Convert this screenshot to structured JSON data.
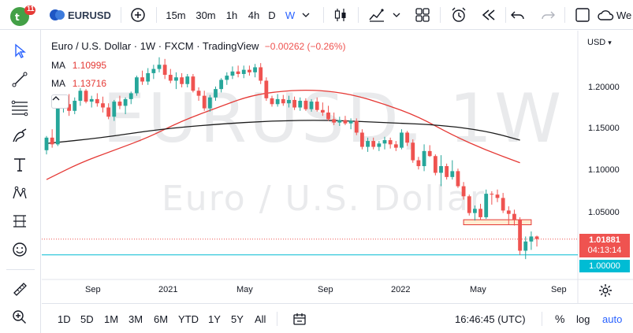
{
  "toolbar": {
    "notification_count": "11",
    "symbol": "EURUSD",
    "intervals": [
      "15m",
      "30m",
      "1h",
      "4h",
      "D",
      "W"
    ],
    "active_interval": "W",
    "cut_label": "We"
  },
  "legend": {
    "title": "Euro / U.S. Dollar · 1W · FXCM · TradingView",
    "change": "−0.00262 (−0.26%)",
    "ma1_label": "MA",
    "ma1_value": "1.10995",
    "ma2_label": "MA",
    "ma2_value": "1.13716"
  },
  "watermark": {
    "symbol": "EURUSD, 1W",
    "name": "Euro / U.S. Dollar"
  },
  "price_axis": {
    "currency": "USD",
    "currency_caret": "▾",
    "ticks": [
      "1.20000",
      "1.15000",
      "1.10000",
      "1.05000"
    ],
    "last_price": "1.01881",
    "countdown": "04:13:14",
    "hline_price": "1.00000"
  },
  "time_axis": {
    "ticks": [
      "Sep",
      "2021",
      "May",
      "Sep",
      "2022",
      "May",
      "Sep"
    ]
  },
  "bottom": {
    "ranges": [
      "1D",
      "5D",
      "1M",
      "3M",
      "6M",
      "YTD",
      "1Y",
      "5Y",
      "All"
    ],
    "clock": "16:46:45 (UTC)",
    "percent": "%",
    "log": "log",
    "auto": "auto"
  },
  "colors": {
    "up": "#26a69a",
    "down": "#ef5350",
    "ma_fast": "#e53935",
    "ma_slow": "#1b1b1b",
    "accent": "#2962ff",
    "hline": "#00bcd4"
  },
  "chart_data": {
    "type": "candlestick",
    "interval": "1W",
    "unit": "USD",
    "ylim": [
      0.99,
      1.24
    ],
    "candles": [
      [
        1.125,
        1.142,
        1.12,
        1.14
      ],
      [
        1.14,
        1.15,
        1.128,
        1.132
      ],
      [
        1.132,
        1.178,
        1.13,
        1.175
      ],
      [
        1.175,
        1.189,
        1.17,
        1.18
      ],
      [
        1.18,
        1.192,
        1.166,
        1.172
      ],
      [
        1.172,
        1.188,
        1.168,
        1.184
      ],
      [
        1.184,
        1.199,
        1.178,
        1.196
      ],
      [
        1.196,
        1.198,
        1.181,
        1.183
      ],
      [
        1.183,
        1.19,
        1.176,
        1.186
      ],
      [
        1.186,
        1.193,
        1.177,
        1.181
      ],
      [
        1.181,
        1.189,
        1.17,
        1.176
      ],
      [
        1.176,
        1.181,
        1.162,
        1.165
      ],
      [
        1.165,
        1.185,
        1.16,
        1.183
      ],
      [
        1.183,
        1.19,
        1.174,
        1.178
      ],
      [
        1.178,
        1.188,
        1.168,
        1.186
      ],
      [
        1.186,
        1.195,
        1.18,
        1.193
      ],
      [
        1.193,
        1.214,
        1.19,
        1.212
      ],
      [
        1.212,
        1.22,
        1.203,
        1.207
      ],
      [
        1.207,
        1.223,
        1.203,
        1.217
      ],
      [
        1.217,
        1.227,
        1.21,
        1.222
      ],
      [
        1.222,
        1.236,
        1.218,
        1.227
      ],
      [
        1.227,
        1.234,
        1.21,
        1.215
      ],
      [
        1.215,
        1.222,
        1.205,
        1.208
      ],
      [
        1.208,
        1.218,
        1.198,
        1.212
      ],
      [
        1.212,
        1.217,
        1.2,
        1.204
      ],
      [
        1.204,
        1.216,
        1.2,
        1.213
      ],
      [
        1.213,
        1.216,
        1.194,
        1.196
      ],
      [
        1.196,
        1.2,
        1.184,
        1.19
      ],
      [
        1.19,
        1.196,
        1.172,
        1.175
      ],
      [
        1.175,
        1.191,
        1.171,
        1.188
      ],
      [
        1.188,
        1.201,
        1.184,
        1.198
      ],
      [
        1.198,
        1.211,
        1.194,
        1.209
      ],
      [
        1.209,
        1.218,
        1.203,
        1.214
      ],
      [
        1.214,
        1.225,
        1.21,
        1.219
      ],
      [
        1.219,
        1.226,
        1.212,
        1.216
      ],
      [
        1.216,
        1.226,
        1.211,
        1.221
      ],
      [
        1.221,
        1.226,
        1.214,
        1.218
      ],
      [
        1.218,
        1.228,
        1.212,
        1.224
      ],
      [
        1.224,
        1.229,
        1.204,
        1.208
      ],
      [
        1.208,
        1.212,
        1.184,
        1.187
      ],
      [
        1.187,
        1.19,
        1.177,
        1.18
      ],
      [
        1.18,
        1.192,
        1.177,
        1.186
      ],
      [
        1.186,
        1.191,
        1.178,
        1.181
      ],
      [
        1.181,
        1.19,
        1.176,
        1.185
      ],
      [
        1.185,
        1.189,
        1.173,
        1.176
      ],
      [
        1.176,
        1.188,
        1.172,
        1.184
      ],
      [
        1.184,
        1.187,
        1.172,
        1.174
      ],
      [
        1.174,
        1.186,
        1.171,
        1.183
      ],
      [
        1.183,
        1.188,
        1.171,
        1.173
      ],
      [
        1.173,
        1.182,
        1.166,
        1.17
      ],
      [
        1.17,
        1.178,
        1.16,
        1.162
      ],
      [
        1.162,
        1.17,
        1.155,
        1.158
      ],
      [
        1.158,
        1.165,
        1.154,
        1.161
      ],
      [
        1.161,
        1.166,
        1.155,
        1.157
      ],
      [
        1.157,
        1.163,
        1.15,
        1.16
      ],
      [
        1.16,
        1.163,
        1.143,
        1.146
      ],
      [
        1.146,
        1.15,
        1.126,
        1.129
      ],
      [
        1.129,
        1.14,
        1.123,
        1.136
      ],
      [
        1.136,
        1.14,
        1.126,
        1.129
      ],
      [
        1.129,
        1.136,
        1.124,
        1.133
      ],
      [
        1.133,
        1.141,
        1.126,
        1.137
      ],
      [
        1.137,
        1.14,
        1.127,
        1.132
      ],
      [
        1.132,
        1.136,
        1.124,
        1.128
      ],
      [
        1.128,
        1.15,
        1.126,
        1.146
      ],
      [
        1.146,
        1.148,
        1.13,
        1.134
      ],
      [
        1.134,
        1.138,
        1.11,
        1.113
      ],
      [
        1.113,
        1.117,
        1.102,
        1.106
      ],
      [
        1.106,
        1.132,
        1.1,
        1.124
      ],
      [
        1.124,
        1.131,
        1.117,
        1.118
      ],
      [
        1.118,
        1.12,
        1.095,
        1.098
      ],
      [
        1.098,
        1.119,
        1.082,
        1.106
      ],
      [
        1.106,
        1.109,
        1.09,
        1.093
      ],
      [
        1.093,
        1.113,
        1.09,
        1.1
      ],
      [
        1.1,
        1.103,
        1.08,
        1.082
      ],
      [
        1.082,
        1.087,
        1.066,
        1.07
      ],
      [
        1.07,
        1.072,
        1.047,
        1.05
      ],
      [
        1.05,
        1.059,
        1.041,
        1.055
      ],
      [
        1.055,
        1.061,
        1.042,
        1.045
      ],
      [
        1.045,
        1.078,
        1.043,
        1.073
      ],
      [
        1.073,
        1.076,
        1.06,
        1.072
      ],
      [
        1.072,
        1.078,
        1.063,
        1.068
      ],
      [
        1.068,
        1.074,
        1.05,
        1.053
      ],
      [
        1.053,
        1.058,
        1.036,
        1.049
      ],
      [
        1.049,
        1.054,
        1.035,
        1.042
      ],
      [
        1.042,
        1.045,
        1.0,
        1.005
      ],
      [
        1.005,
        1.022,
        0.995,
        1.016
      ],
      [
        1.016,
        1.028,
        1.006,
        1.022
      ],
      [
        1.022,
        1.023,
        1.01,
        1.019
      ]
    ],
    "moving_averages": [
      {
        "label": "MA 1.10995",
        "period_hint": "fast",
        "points": [
          [
            0,
            1.09
          ],
          [
            6,
            1.11
          ],
          [
            12,
            1.125
          ],
          [
            18,
            1.14
          ],
          [
            24,
            1.16
          ],
          [
            30,
            1.175
          ],
          [
            36,
            1.19
          ],
          [
            42,
            1.196
          ],
          [
            48,
            1.197
          ],
          [
            54,
            1.192
          ],
          [
            60,
            1.18
          ],
          [
            66,
            1.165
          ],
          [
            72,
            1.143
          ],
          [
            78,
            1.125
          ],
          [
            84,
            1.11
          ]
        ]
      },
      {
        "label": "MA 1.13716",
        "period_hint": "slow",
        "points": [
          [
            0,
            1.133
          ],
          [
            10,
            1.14
          ],
          [
            20,
            1.15
          ],
          [
            30,
            1.156
          ],
          [
            40,
            1.16
          ],
          [
            50,
            1.161
          ],
          [
            60,
            1.158
          ],
          [
            70,
            1.155
          ],
          [
            78,
            1.148
          ],
          [
            84,
            1.137
          ]
        ]
      }
    ],
    "zone": {
      "x_from": 74,
      "x_to": 86,
      "price_high": 1.042,
      "price_low": 1.036
    },
    "hline": 1.0,
    "last_price": 1.01881
  }
}
